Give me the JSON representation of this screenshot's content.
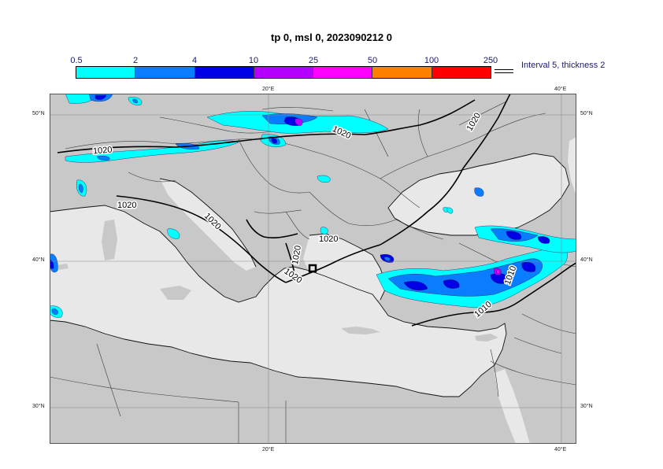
{
  "title": "tp 0, msl 0, 2023090212 0",
  "colorbar": {
    "ticks": [
      "0.5",
      "2",
      "4",
      "10",
      "25",
      "50",
      "100",
      "250"
    ],
    "colors": [
      "#00ffff",
      "#0a7dff",
      "#0000e6",
      "#b400ff",
      "#ff00ff",
      "#ff7f00",
      "#ff0000"
    ],
    "info": "Interval 5, thickness 2"
  },
  "axes": {
    "top": [
      "20°E",
      "40°E"
    ],
    "bottom": [
      "20°E",
      "40°E"
    ],
    "left": [
      "50°N",
      "40°N",
      "30°N"
    ],
    "right": [
      "50°N",
      "40°N",
      "30°N"
    ]
  },
  "isobars": [
    "1020",
    "1020",
    "1020",
    "1020",
    "1020",
    "1020",
    "1020",
    "1020",
    "1010",
    "1010"
  ],
  "colors": {
    "land": "#c8c8c8",
    "sea": "#e8e8e8",
    "grid": "#8a8a8a",
    "border": "#3a3a3a"
  }
}
